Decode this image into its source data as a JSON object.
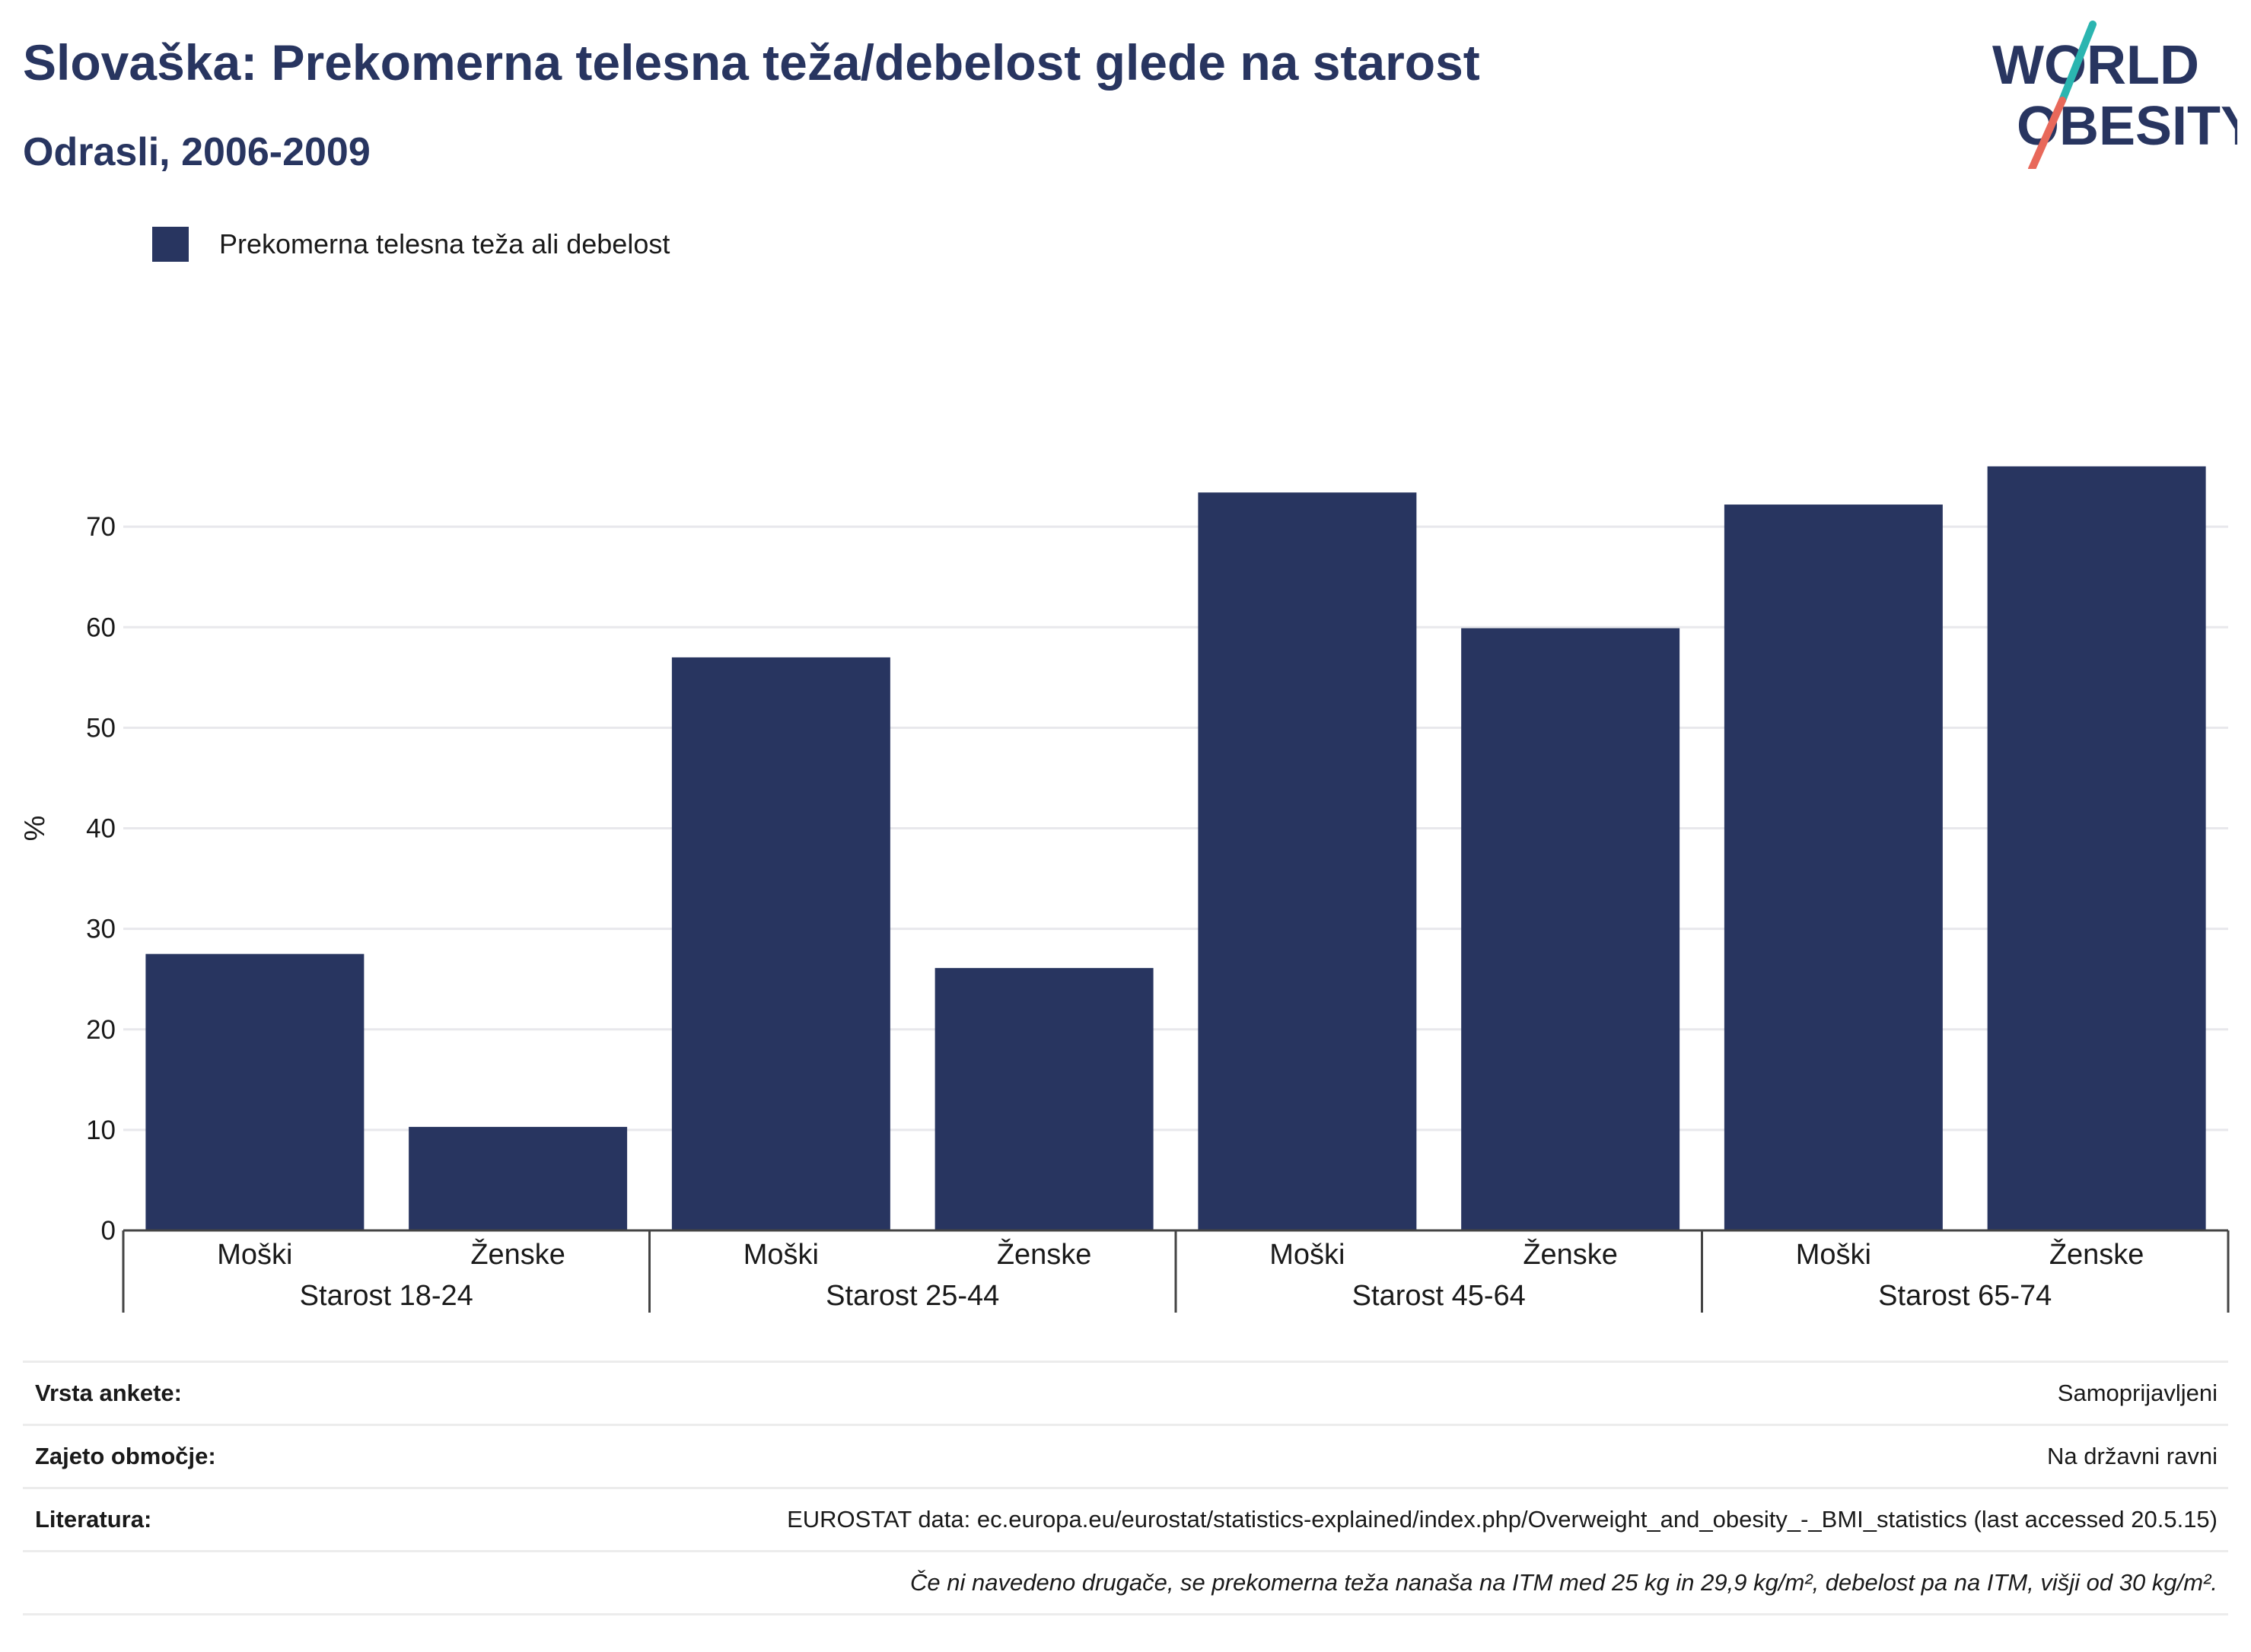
{
  "header": {
    "title": "Slovaška: Prekomerna telesna teža/debelost glede na starost",
    "subtitle": "Odrasli, 2006-2009"
  },
  "logo": {
    "line1": "WORLD",
    "line2": "OBESITY",
    "colors": {
      "text": "#283560",
      "slash_top": "#2bb5b0",
      "slash_bottom": "#e8685a"
    }
  },
  "chart_data": {
    "type": "bar",
    "title": "Slovaška: Prekomerna telesna teža/debelost glede na starost",
    "subtitle": "Odrasli, 2006-2009",
    "ylabel": "%",
    "ylim": [
      0,
      80
    ],
    "yticks": [
      0,
      10,
      20,
      30,
      40,
      50,
      60,
      70
    ],
    "grid": true,
    "legend_position": "top-left",
    "groups": [
      "Starost 18-24",
      "Starost 25-44",
      "Starost 45-64",
      "Starost 65-74"
    ],
    "categories": [
      "Moški",
      "Ženske",
      "Moški",
      "Ženske",
      "Moški",
      "Ženske",
      "Moški",
      "Ženske"
    ],
    "series": [
      {
        "name": "Prekomerna telesna teža ali debelost",
        "color": "#283560",
        "values": [
          27.5,
          10.3,
          57.0,
          26.1,
          73.4,
          59.9,
          72.2,
          76.0
        ]
      }
    ]
  },
  "meta": {
    "rows": [
      {
        "label": "Vrsta ankete:",
        "value": "Samoprijavljeni"
      },
      {
        "label": "Zajeto območje:",
        "value": "Na državni ravni"
      },
      {
        "label": "Literatura:",
        "value": "EUROSTAT data: ec.europa.eu/eurostat/statistics-explained/index.php/Overweight_and_obesity_-_BMI_statistics (last accessed 20.5.15)"
      }
    ],
    "note": "Če ni navedeno drugače, se prekomerna teža nanaša na ITM med 25 kg in 29,9 kg/m², debelost pa na ITM, višji od 30 kg/m²."
  }
}
